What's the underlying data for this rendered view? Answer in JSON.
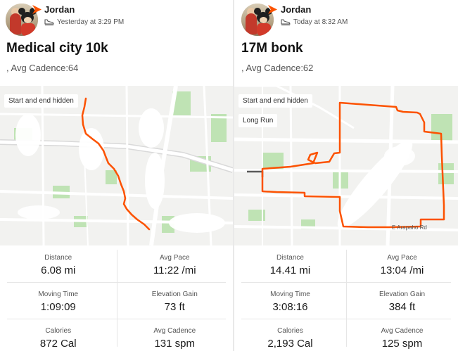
{
  "activities": [
    {
      "athlete": "Jordan",
      "timestamp": "Yesterday at 3:29 PM",
      "title": "Medical city 10k",
      "cadence_line": ", Avg Cadence:64",
      "map_tags": [
        "Start and end hidden"
      ],
      "stats": [
        {
          "label": "Distance",
          "value": "6.08 mi"
        },
        {
          "label": "Avg Pace",
          "value": "11:22 /mi"
        },
        {
          "label": "Moving Time",
          "value": "1:09:09"
        },
        {
          "label": "Elevation Gain",
          "value": "73 ft"
        },
        {
          "label": "Calories",
          "value": "872 Cal"
        },
        {
          "label": "Avg Cadence",
          "value": "131 spm"
        }
      ]
    },
    {
      "athlete": "Jordan",
      "timestamp": "Today at 8:32 AM",
      "title": "17M bonk",
      "cadence_line": ", Avg Cadence:62",
      "map_tags": [
        "Start and end hidden",
        "Long Run"
      ],
      "road_label": "E Arapaho Rd",
      "stats": [
        {
          "label": "Distance",
          "value": "14.41 mi"
        },
        {
          "label": "Avg Pace",
          "value": "13:04 /mi"
        },
        {
          "label": "Moving Time",
          "value": "3:08:16"
        },
        {
          "label": "Elevation Gain",
          "value": "384 ft"
        },
        {
          "label": "Calories",
          "value": "2,193 Cal"
        },
        {
          "label": "Avg Cadence",
          "value": "125 spm"
        }
      ]
    }
  ],
  "colors": {
    "route": "#fc5200",
    "brand": "#fc5200",
    "park": "#bfe3b4",
    "road": "#ffffff",
    "map_bg": "#f2f2f0"
  },
  "icons": {
    "athlete_badge": "strava-chevron-icon",
    "activity_type": "shoe-icon"
  }
}
